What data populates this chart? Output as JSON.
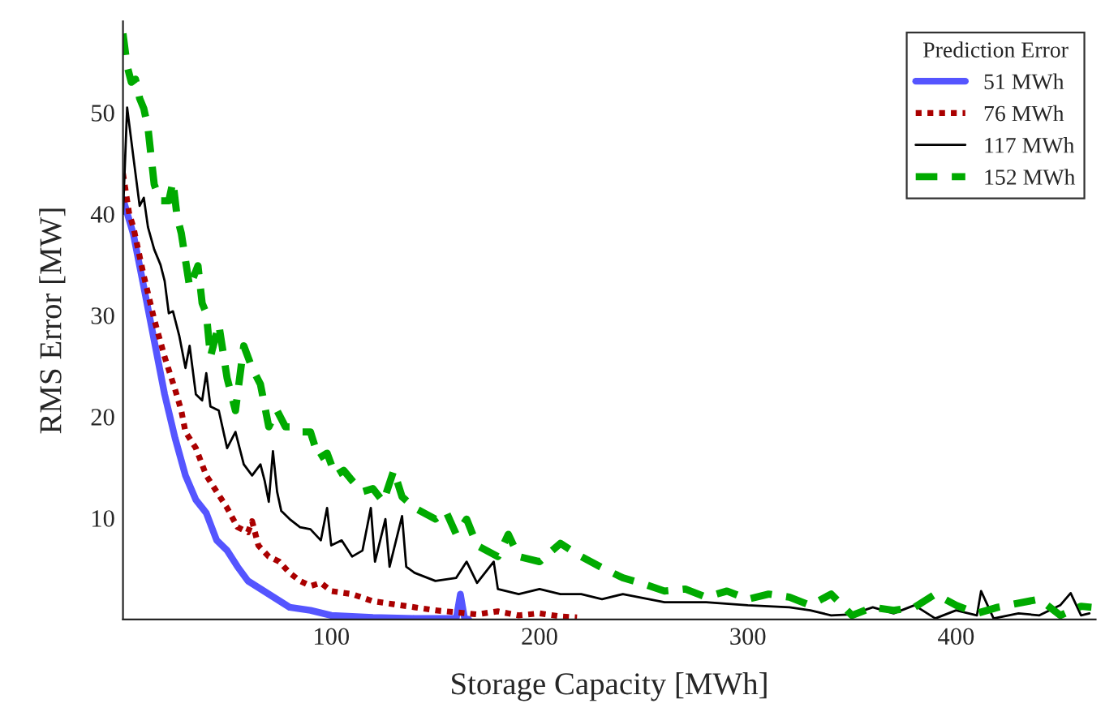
{
  "chart_data": {
    "type": "line",
    "xlabel": "Storage Capacity [MWh]",
    "ylabel": "RMS Error [MW]",
    "legend_title": "Prediction Error",
    "legend": "top right",
    "grid": false,
    "marker": "none",
    "xlim": [
      0,
      467
    ],
    "ylim": [
      0,
      59
    ],
    "xticks": [
      100,
      200,
      300,
      400
    ],
    "yticks": [
      10,
      20,
      30,
      40,
      50
    ],
    "series": [
      {
        "name": "51 MWh",
        "color": "#5555ff",
        "line_style": "solid",
        "x": [
          0,
          5,
          10,
          15,
          20,
          25,
          30,
          35,
          40,
          45,
          50,
          55,
          60,
          70,
          80,
          90,
          100,
          120,
          140,
          160,
          162,
          164,
          166
        ],
        "values": [
          41.5,
          38,
          32.8,
          27.5,
          22.2,
          17.9,
          14.2,
          11.8,
          10.5,
          7.8,
          6.8,
          5.2,
          3.8,
          2.5,
          1.2,
          0.9,
          0.4,
          0.2,
          0.1,
          0.1,
          2.5,
          0.1,
          0
        ]
      },
      {
        "name": "76 MWh",
        "color": "#aa0000",
        "line_style": "dotted",
        "x": [
          0,
          3,
          5,
          10,
          15,
          20,
          25,
          28,
          30,
          35,
          40,
          45,
          50,
          55,
          60,
          62,
          65,
          70,
          75,
          80,
          85,
          90,
          95,
          100,
          110,
          120,
          130,
          140,
          150,
          160,
          170,
          180,
          190,
          200,
          210,
          218
        ],
        "values": [
          44,
          40,
          38.7,
          33.9,
          29.6,
          25.9,
          22.7,
          20.6,
          18.5,
          16.9,
          14.2,
          12.6,
          11,
          9.1,
          8.6,
          9.7,
          7.3,
          6.2,
          5.7,
          4.6,
          3.8,
          3.3,
          3.6,
          2.8,
          2.5,
          1.8,
          1.5,
          1.2,
          0.9,
          0.7,
          0.5,
          0.8,
          0.4,
          0.6,
          0.3,
          0.2
        ]
      },
      {
        "name": "117 MWh",
        "color": "#000000",
        "line_style": "solid",
        "x": [
          0,
          2,
          5,
          8,
          10,
          12,
          15,
          18,
          20,
          22,
          24,
          27,
          30,
          32,
          35,
          38,
          40,
          42,
          46,
          50,
          54,
          58,
          62,
          66,
          68,
          70,
          72,
          74,
          76,
          80,
          85,
          90,
          95,
          98,
          100,
          105,
          110,
          115,
          119,
          121,
          126,
          128,
          134,
          136,
          140,
          150,
          160,
          165,
          170,
          178,
          180,
          190,
          200,
          210,
          220,
          230,
          240,
          260,
          280,
          300,
          320,
          330,
          340,
          350,
          360,
          370,
          380,
          390,
          400,
          410,
          412,
          418,
          430,
          440,
          450,
          455,
          460,
          464
        ],
        "values": [
          40,
          50.5,
          45.6,
          40.8,
          41.6,
          38.7,
          36.5,
          35,
          33.4,
          30.2,
          30.4,
          28,
          24.8,
          27,
          22.2,
          21.6,
          24.3,
          21,
          20.6,
          16.9,
          18.5,
          15.3,
          14.2,
          15.3,
          13.7,
          11.6,
          16.6,
          12.6,
          10.7,
          9.9,
          9.1,
          8.9,
          7.8,
          11,
          7.3,
          7.8,
          6.2,
          6.8,
          11,
          5.7,
          9.9,
          5.2,
          10.2,
          5.2,
          4.6,
          3.8,
          4.1,
          5.7,
          3.6,
          5.7,
          3,
          2.5,
          3,
          2.5,
          2.5,
          2,
          2.5,
          1.7,
          1.7,
          1.4,
          1.2,
          0.9,
          0.4,
          0.5,
          1.2,
          0.6,
          1.4,
          0.1,
          0.9,
          0.4,
          2.8,
          0.1,
          0.6,
          0.4,
          1.4,
          2.6,
          0.4,
          0.6
        ]
      },
      {
        "name": "152 MWh",
        "color": "#00aa00",
        "line_style": "dashed",
        "x": [
          0,
          2,
          4,
          6,
          8,
          10,
          12,
          15,
          18,
          22,
          24,
          26,
          28,
          32,
          36,
          38,
          40,
          42,
          46,
          50,
          54,
          58,
          62,
          66,
          70,
          74,
          78,
          82,
          86,
          90,
          94,
          98,
          102,
          106,
          110,
          115,
          120,
          125,
          130,
          134,
          140,
          150,
          155,
          160,
          165,
          170,
          180,
          185,
          190,
          200,
          210,
          220,
          230,
          240,
          250,
          260,
          270,
          280,
          290,
          300,
          310,
          320,
          330,
          340,
          350,
          360,
          370,
          380,
          390,
          400,
          410,
          420,
          440,
          450,
          460,
          465
        ],
        "values": [
          57.8,
          54.6,
          53,
          53.3,
          51.4,
          50.4,
          48.5,
          42.9,
          41.3,
          41.3,
          43.2,
          39.7,
          38.1,
          32.8,
          34.9,
          31.2,
          30.2,
          25.9,
          29.1,
          23.8,
          20.6,
          27,
          24.8,
          23.2,
          19,
          20.6,
          19,
          19,
          18.5,
          18.5,
          15.9,
          16.4,
          14.2,
          14.7,
          13.7,
          12.6,
          12.9,
          11.6,
          14.7,
          12.1,
          11,
          9.9,
          10.7,
          8.4,
          9.9,
          7.3,
          6.2,
          8.4,
          6.2,
          5.7,
          7.5,
          6.2,
          5.1,
          4.1,
          3.5,
          2.8,
          3,
          2.2,
          2.8,
          2,
          2.5,
          2.2,
          1.4,
          2.5,
          0.4,
          1.2,
          0.9,
          1.2,
          2.5,
          1.4,
          0.6,
          1.2,
          2,
          0.4,
          1.3,
          1.2
        ]
      }
    ]
  }
}
